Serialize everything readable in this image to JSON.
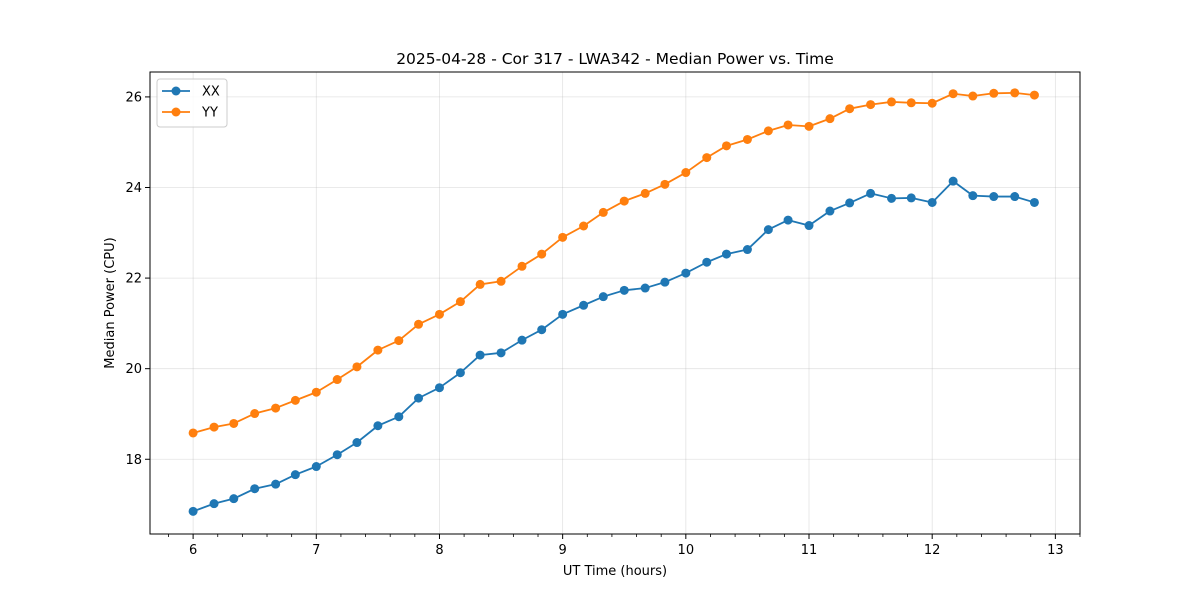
{
  "chart_data": {
    "type": "line",
    "title": "2025-04-28 - Cor 317 - LWA342 - Median Power vs. Time",
    "xlabel": "UT Time (hours)",
    "ylabel": "Median Power (CPU)",
    "xlim": [
      5.65,
      13.2
    ],
    "ylim": [
      16.35,
      26.55
    ],
    "xticks": [
      6,
      7,
      8,
      9,
      10,
      11,
      12,
      13
    ],
    "yticks": [
      18,
      20,
      22,
      24,
      26
    ],
    "grid": true,
    "legend_position": "top-left",
    "x": [
      6.0,
      6.17,
      6.33,
      6.5,
      6.67,
      6.83,
      7.0,
      7.17,
      7.33,
      7.5,
      7.67,
      7.83,
      8.0,
      8.17,
      8.33,
      8.5,
      8.67,
      8.83,
      9.0,
      9.17,
      9.33,
      9.5,
      9.67,
      9.83,
      10.0,
      10.17,
      10.33,
      10.5,
      10.67,
      10.83,
      11.0,
      11.17,
      11.33,
      11.5,
      11.67,
      11.83,
      12.0,
      12.17,
      12.33,
      12.5,
      12.67,
      12.83
    ],
    "series": [
      {
        "name": "XX",
        "color": "#1f77b4",
        "values": [
          16.85,
          17.02,
          17.13,
          17.35,
          17.45,
          17.66,
          17.84,
          18.1,
          18.37,
          18.74,
          18.94,
          19.35,
          19.58,
          19.91,
          20.3,
          20.35,
          20.63,
          20.86,
          21.2,
          21.4,
          21.59,
          21.73,
          21.78,
          21.91,
          22.11,
          22.35,
          22.53,
          22.63,
          23.07,
          23.28,
          23.16,
          23.48,
          23.66,
          23.87,
          23.76,
          23.77,
          23.67,
          24.14,
          23.82,
          23.8,
          23.8,
          23.67
        ]
      },
      {
        "name": "YY",
        "color": "#ff7f0e",
        "values": [
          18.58,
          18.71,
          18.79,
          19.01,
          19.13,
          19.3,
          19.48,
          19.76,
          20.04,
          20.41,
          20.62,
          20.98,
          21.2,
          21.48,
          21.86,
          21.93,
          22.26,
          22.53,
          22.9,
          23.15,
          23.45,
          23.7,
          23.87,
          24.07,
          24.33,
          24.66,
          24.92,
          25.06,
          25.25,
          25.38,
          25.35,
          25.52,
          25.74,
          25.83,
          25.89,
          25.87,
          25.86,
          26.07,
          26.02,
          26.08,
          26.09,
          26.04
        ]
      }
    ]
  }
}
